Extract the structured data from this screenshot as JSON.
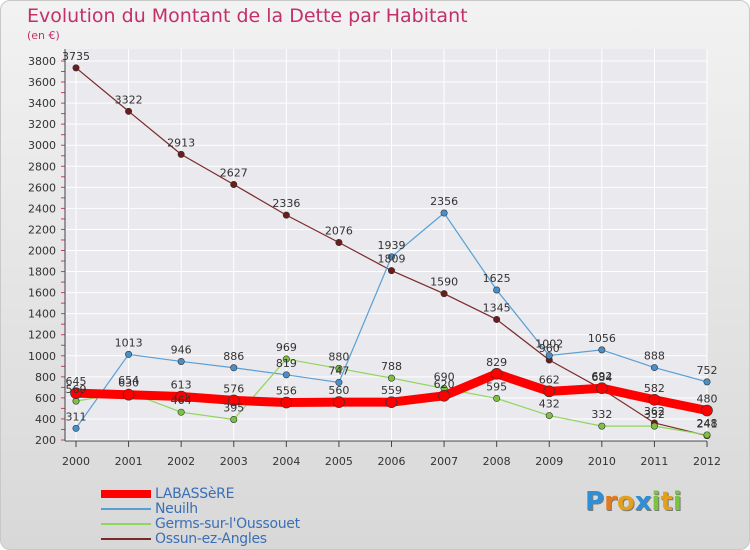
{
  "title": "Evolution du Montant de la Dette par Habitant",
  "unit": "(en €)",
  "logo": {
    "letters": [
      "P",
      "r",
      "o",
      "x",
      "i",
      "t",
      "i"
    ],
    "colors": [
      "#2f8fd6",
      "#e07b20",
      "#e0a020",
      "#2f8fd6",
      "#7cc243",
      "#e0a020",
      "#7cc243"
    ]
  },
  "chart_data": {
    "type": "line",
    "x": [
      "2000",
      "2001",
      "2002",
      "2003",
      "2004",
      "2005",
      "2006",
      "2007",
      "2008",
      "2009",
      "2010",
      "2011",
      "2012"
    ],
    "y_ticks": [
      200,
      400,
      600,
      800,
      1000,
      1200,
      1400,
      1600,
      1800,
      2000,
      2200,
      2400,
      2600,
      2800,
      3000,
      3200,
      3400,
      3600,
      3800
    ],
    "ylim": [
      200,
      3800
    ],
    "grid": true,
    "legend_position": "bottom-left",
    "series": [
      {
        "name": "Ossun-ez-Angles",
        "color": "#7a2a2a",
        "width": 1.2,
        "marker": "#6b1d1d",
        "values": [
          3735,
          3322,
          2913,
          2627,
          2336,
          2076,
          1809,
          1590,
          1345,
          960,
          684,
          362,
          241
        ],
        "labels": [
          "3735",
          "3322",
          "2913",
          "2627",
          "2336",
          "2076",
          "1809",
          "1590",
          "1345",
          "960",
          "684",
          "362",
          "241"
        ]
      },
      {
        "name": "Neuilh",
        "color": "#5a9fd4",
        "width": 1.2,
        "marker": "#4a8fc8",
        "values": [
          311,
          1013,
          946,
          886,
          819,
          747,
          1939,
          2356,
          1625,
          1002,
          1056,
          888,
          752
        ],
        "labels": [
          "311",
          "1013",
          "946",
          "886",
          "819",
          "747",
          "1939",
          "2356",
          "1625",
          "1002",
          "1056",
          "888",
          "752"
        ]
      },
      {
        "name": "Germs-sur-l'Oussouet",
        "color": "#8fd65a",
        "width": 1.2,
        "marker": "#7cc243",
        "values": [
          569,
          654,
          464,
          395,
          969,
          880,
          788,
          690,
          595,
          432,
          332,
          332,
          248
        ],
        "labels": [
          "569",
          "654",
          "464",
          "395",
          "969",
          "880",
          "788",
          "690",
          "595",
          "432",
          "332",
          "332",
          "248"
        ]
      },
      {
        "name": "LABASSèRE",
        "color": "#ff0000",
        "width": 9,
        "marker": "#ff0000",
        "values": [
          645,
          630,
          613,
          576,
          556,
          560,
          559,
          620,
          829,
          662,
          692,
          582,
          480
        ],
        "labels": [
          "645",
          "630",
          "613",
          "576",
          "556",
          "560",
          "559",
          "620",
          "829",
          "662",
          "692",
          "582",
          "480"
        ]
      }
    ]
  },
  "legend": [
    {
      "label": "LABASSèRE",
      "color": "#ff0000",
      "thickness": 8
    },
    {
      "label": "Neuilh",
      "color": "#5a9fd4",
      "thickness": 2
    },
    {
      "label": "Germs-sur-l'Oussouet",
      "color": "#8fd65a",
      "thickness": 2
    },
    {
      "label": "Ossun-ez-Angles",
      "color": "#7a2a2a",
      "thickness": 2
    }
  ]
}
